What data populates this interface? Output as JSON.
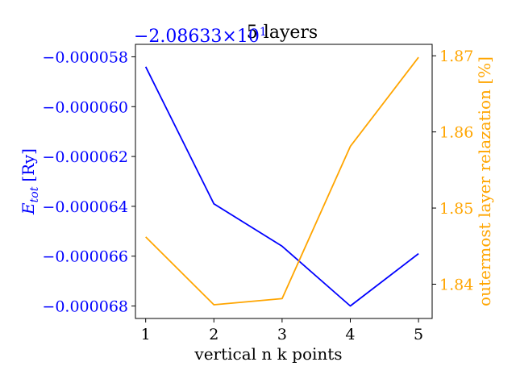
{
  "chart_data": {
    "type": "line",
    "title": "5 layers",
    "xlabel": "vertical n k points",
    "x": [
      1,
      2,
      3,
      4,
      5
    ],
    "xticks": [
      "1",
      "2",
      "3",
      "4",
      "5"
    ],
    "xlim": [
      0.85,
      5.2
    ],
    "left_axis": {
      "label_main": "E",
      "label_sub": "tot",
      "label_unit": "[Ry]",
      "offset_text": "−2.08633×10",
      "offset_exp": "1",
      "ylim": [
        -6.85e-05,
        -5.75e-05
      ],
      "ticks": [
        -5.8e-05,
        -6e-05,
        -6.2e-05,
        -6.4e-05,
        -6.6e-05,
        -6.8e-05
      ],
      "tick_labels": [
        "−0.000058",
        "−0.000060",
        "−0.000062",
        "−0.000064",
        "−0.000066",
        "−0.000068"
      ],
      "color": "#0000ff"
    },
    "right_axis": {
      "label": "outermost layer relazation [%]",
      "ylim": [
        1.8355,
        1.8715
      ],
      "ticks": [
        1.84,
        1.85,
        1.86,
        1.87
      ],
      "tick_labels": [
        "1.84",
        "1.85",
        "1.86",
        "1.87"
      ],
      "color": "#ffa500"
    },
    "series": [
      {
        "axis": "left",
        "color": "#0000ff",
        "values": [
          -5.84e-05,
          -6.39e-05,
          -6.56e-05,
          -6.8e-05,
          -6.59e-05
        ]
      },
      {
        "axis": "right",
        "color": "#ffa500",
        "values": [
          1.8462,
          1.8373,
          1.8381,
          1.8581,
          1.8698
        ]
      }
    ]
  }
}
